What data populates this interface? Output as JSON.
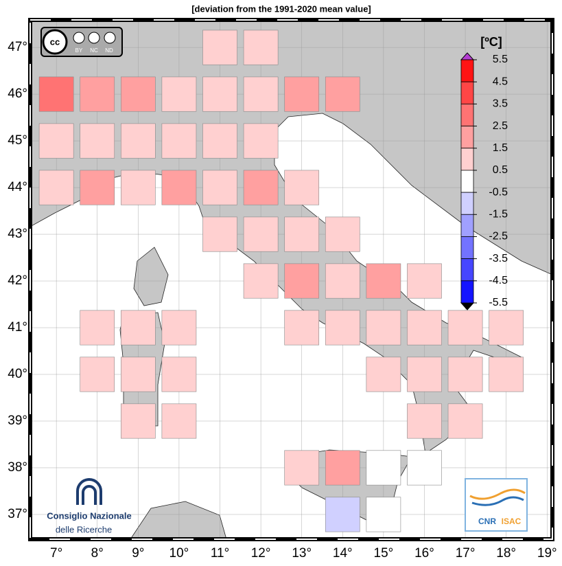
{
  "title": "[deviation from the 1991-2020 mean value]",
  "map": {
    "xlim": [
      6.36,
      19.13
    ],
    "ylim": [
      36.47,
      47.59
    ],
    "xticks": [
      {
        "value": 7,
        "label": "7°"
      },
      {
        "value": 8,
        "label": "8°"
      },
      {
        "value": 9,
        "label": "9°"
      },
      {
        "value": 10,
        "label": "10°"
      },
      {
        "value": 11,
        "label": "11°"
      },
      {
        "value": 12,
        "label": "12°"
      },
      {
        "value": 13,
        "label": "13°"
      },
      {
        "value": 14,
        "label": "14°"
      },
      {
        "value": 15,
        "label": "15°"
      },
      {
        "value": 16,
        "label": "16°"
      },
      {
        "value": 17,
        "label": "17°"
      },
      {
        "value": 18,
        "label": "18°"
      },
      {
        "value": 19,
        "label": "19°"
      }
    ],
    "yticks": [
      {
        "value": 37,
        "label": "37°"
      },
      {
        "value": 38,
        "label": "38°"
      },
      {
        "value": 39,
        "label": "39°"
      },
      {
        "value": 40,
        "label": "40°"
      },
      {
        "value": 41,
        "label": "41°"
      },
      {
        "value": 42,
        "label": "42°"
      },
      {
        "value": 43,
        "label": "43°"
      },
      {
        "value": 44,
        "label": "44°"
      },
      {
        "value": 45,
        "label": "45°"
      },
      {
        "value": 46,
        "label": "46°"
      },
      {
        "value": 47,
        "label": "47°"
      }
    ],
    "grid": true
  },
  "cells": [
    {
      "lon": 11,
      "lat": 47,
      "value": 1
    },
    {
      "lon": 12,
      "lat": 47,
      "value": 1
    },
    {
      "lon": 7,
      "lat": 46,
      "value": 3
    },
    {
      "lon": 8,
      "lat": 46,
      "value": 2
    },
    {
      "lon": 9,
      "lat": 46,
      "value": 2
    },
    {
      "lon": 10,
      "lat": 46,
      "value": 1
    },
    {
      "lon": 11,
      "lat": 46,
      "value": 1
    },
    {
      "lon": 12,
      "lat": 46,
      "value": 1
    },
    {
      "lon": 13,
      "lat": 46,
      "value": 2
    },
    {
      "lon": 14,
      "lat": 46,
      "value": 2
    },
    {
      "lon": 7,
      "lat": 45,
      "value": 1
    },
    {
      "lon": 8,
      "lat": 45,
      "value": 1
    },
    {
      "lon": 9,
      "lat": 45,
      "value": 1
    },
    {
      "lon": 10,
      "lat": 45,
      "value": 1
    },
    {
      "lon": 11,
      "lat": 45,
      "value": 1
    },
    {
      "lon": 12,
      "lat": 45,
      "value": 1
    },
    {
      "lon": 7,
      "lat": 44,
      "value": 1
    },
    {
      "lon": 8,
      "lat": 44,
      "value": 2
    },
    {
      "lon": 9,
      "lat": 44,
      "value": 1
    },
    {
      "lon": 10,
      "lat": 44,
      "value": 2
    },
    {
      "lon": 11,
      "lat": 44,
      "value": 1
    },
    {
      "lon": 12,
      "lat": 44,
      "value": 2
    },
    {
      "lon": 13,
      "lat": 44,
      "value": 1
    },
    {
      "lon": 11,
      "lat": 43,
      "value": 1
    },
    {
      "lon": 12,
      "lat": 43,
      "value": 1
    },
    {
      "lon": 13,
      "lat": 43,
      "value": 1
    },
    {
      "lon": 14,
      "lat": 43,
      "value": 1
    },
    {
      "lon": 12,
      "lat": 42,
      "value": 1
    },
    {
      "lon": 13,
      "lat": 42,
      "value": 2
    },
    {
      "lon": 14,
      "lat": 42,
      "value": 1
    },
    {
      "lon": 15,
      "lat": 42,
      "value": 2
    },
    {
      "lon": 16,
      "lat": 42,
      "value": 1
    },
    {
      "lon": 8,
      "lat": 41,
      "value": 1
    },
    {
      "lon": 9,
      "lat": 41,
      "value": 1
    },
    {
      "lon": 10,
      "lat": 41,
      "value": 1
    },
    {
      "lon": 13,
      "lat": 41,
      "value": 1
    },
    {
      "lon": 14,
      "lat": 41,
      "value": 1
    },
    {
      "lon": 15,
      "lat": 41,
      "value": 1
    },
    {
      "lon": 16,
      "lat": 41,
      "value": 1
    },
    {
      "lon": 17,
      "lat": 41,
      "value": 1
    },
    {
      "lon": 18,
      "lat": 41,
      "value": 1
    },
    {
      "lon": 8,
      "lat": 40,
      "value": 1
    },
    {
      "lon": 9,
      "lat": 40,
      "value": 1
    },
    {
      "lon": 10,
      "lat": 40,
      "value": 1
    },
    {
      "lon": 15,
      "lat": 40,
      "value": 1
    },
    {
      "lon": 16,
      "lat": 40,
      "value": 1
    },
    {
      "lon": 17,
      "lat": 40,
      "value": 1
    },
    {
      "lon": 18,
      "lat": 40,
      "value": 1
    },
    {
      "lon": 9,
      "lat": 39,
      "value": 1
    },
    {
      "lon": 10,
      "lat": 39,
      "value": 1
    },
    {
      "lon": 16,
      "lat": 39,
      "value": 1
    },
    {
      "lon": 17,
      "lat": 39,
      "value": 1
    },
    {
      "lon": 13,
      "lat": 38,
      "value": 1
    },
    {
      "lon": 14,
      "lat": 38,
      "value": 2
    },
    {
      "lon": 15,
      "lat": 38,
      "value": 0
    },
    {
      "lon": 16,
      "lat": 38,
      "value": 0
    },
    {
      "lon": 14,
      "lat": 37,
      "value": -1
    },
    {
      "lon": 15,
      "lat": 37,
      "value": 0
    }
  ],
  "colorbar": {
    "unit": "[ºC]",
    "bounds": [
      5.5,
      4.5,
      3.5,
      2.5,
      1.5,
      0.5,
      -0.5,
      -1.5,
      -2.5,
      -3.5,
      -4.5,
      -5.5
    ],
    "colors": [
      "#ff1414",
      "#ff4646",
      "#ff7373",
      "#ffa0a0",
      "#ffd0d0",
      "#ffffff",
      "#d0d0ff",
      "#a0a0ff",
      "#7373ff",
      "#4646ff",
      "#1414ff"
    ]
  },
  "credits": {
    "cc": [
      "BY",
      "NC",
      "ND"
    ],
    "cnr": [
      "Consiglio Nazionale",
      "delle Ricerche"
    ],
    "isac": [
      "CNR",
      "ISAC"
    ]
  }
}
